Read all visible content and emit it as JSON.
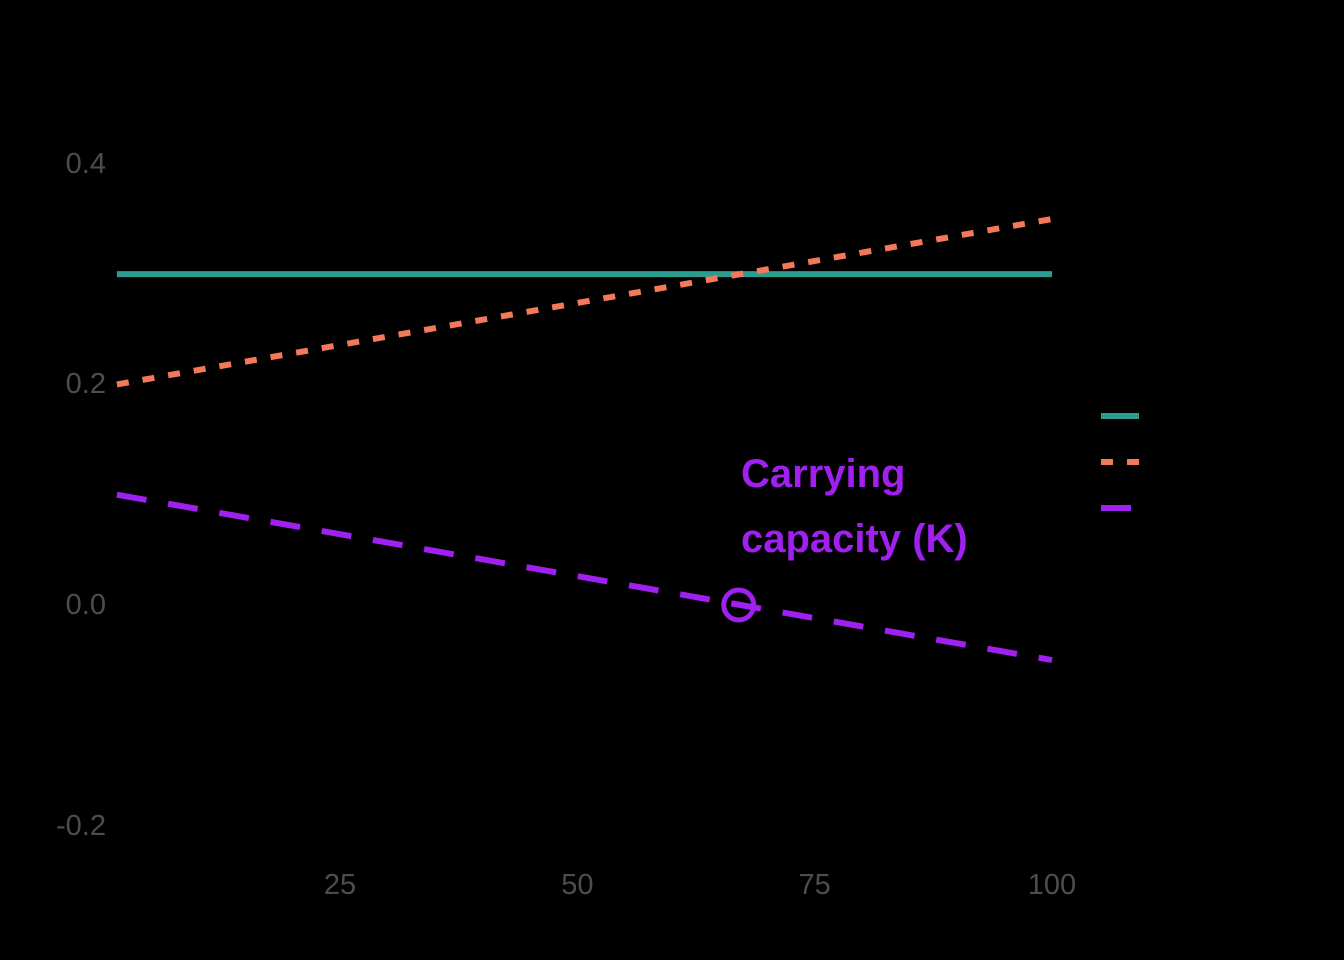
{
  "colors": {
    "background": "#000000",
    "axis_text": "#4D4D4D",
    "teal": "#2A9D8F",
    "salmon": "#F4795B",
    "purple": "#A020F0"
  },
  "chart_data": {
    "type": "line",
    "title": "",
    "xlabel": "",
    "ylabel": "",
    "grid": false,
    "x_axis": {
      "range": [
        1.5,
        100
      ],
      "ticks": [
        {
          "value": 25,
          "label": "25"
        },
        {
          "value": 50,
          "label": "50"
        },
        {
          "value": 75,
          "label": "75"
        },
        {
          "value": 100,
          "label": "100"
        }
      ]
    },
    "y_axis": {
      "range": [
        -0.25,
        0.45
      ],
      "ticks": [
        {
          "value": 0.4,
          "label": "0.4"
        },
        {
          "value": 0.2,
          "label": "0.2"
        },
        {
          "value": 0.0,
          "label": "0.0"
        },
        {
          "value": -0.2,
          "label": "-0.2"
        }
      ]
    },
    "series": [
      {
        "id": "solid-teal",
        "style": "solid",
        "color": "#2A9D8F",
        "points": [
          [
            1.5,
            0.3
          ],
          [
            100,
            0.3
          ]
        ]
      },
      {
        "id": "dotted-salmon",
        "style": "dotted",
        "color": "#F4795B",
        "points": [
          [
            1.5,
            0.2
          ],
          [
            100,
            0.35
          ]
        ]
      },
      {
        "id": "dashed-purple",
        "style": "dashed",
        "color": "#A020F0",
        "points": [
          [
            1.5,
            0.1
          ],
          [
            100,
            -0.05
          ]
        ]
      }
    ],
    "annotation": {
      "lines": [
        "Carrying",
        "capacity (K)"
      ],
      "color": "#A020F0",
      "marker": {
        "x": 67,
        "y": 0,
        "shape": "open-circle"
      }
    },
    "legend": {
      "position": "right",
      "entries": [
        {
          "style": "solid",
          "color": "#2A9D8F"
        },
        {
          "style": "dotted",
          "color": "#F4795B"
        },
        {
          "style": "dashed",
          "color": "#A020F0"
        }
      ]
    }
  }
}
